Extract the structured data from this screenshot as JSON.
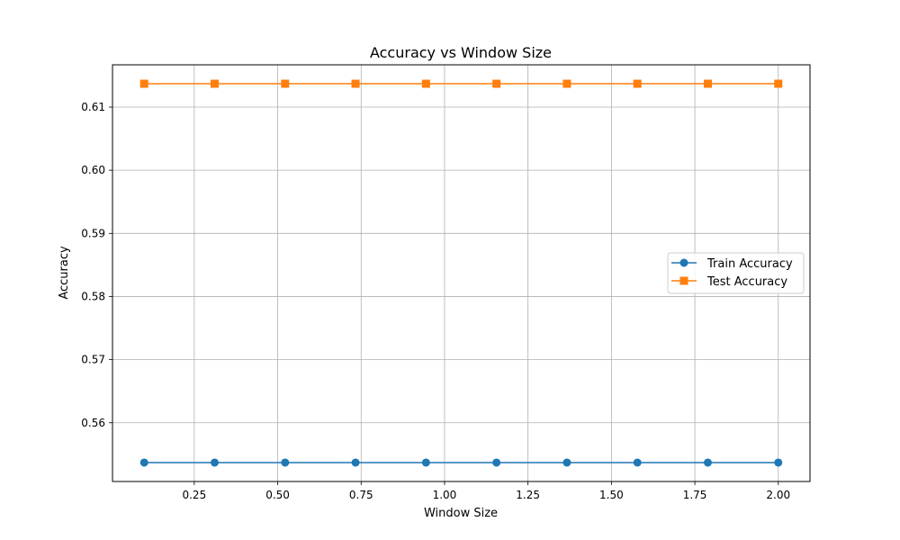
{
  "chart_data": {
    "type": "line",
    "title": "Accuracy vs Window Size",
    "xlabel": "Window Size",
    "ylabel": "Accuracy",
    "xlim": [
      0.005,
      2.095
    ],
    "ylim": [
      0.5507,
      0.6167
    ],
    "xticks": [
      0.25,
      0.5,
      0.75,
      1.0,
      1.25,
      1.5,
      1.75,
      2.0
    ],
    "xtick_labels": [
      "0.25",
      "0.50",
      "0.75",
      "1.00",
      "1.25",
      "1.50",
      "1.75",
      "2.00"
    ],
    "yticks": [
      0.56,
      0.57,
      0.58,
      0.59,
      0.6,
      0.61
    ],
    "ytick_labels": [
      "0.56",
      "0.57",
      "0.58",
      "0.59",
      "0.60",
      "0.61"
    ],
    "grid": true,
    "legend_position": "center-right",
    "x": [
      0.1,
      0.3111,
      0.5222,
      0.7333,
      0.9444,
      1.1556,
      1.3667,
      1.5778,
      1.7889,
      2.0
    ],
    "series": [
      {
        "name": "Train Accuracy",
        "color": "#1f77b4",
        "marker": "circle",
        "values": [
          0.5537,
          0.5537,
          0.5537,
          0.5537,
          0.5537,
          0.5537,
          0.5537,
          0.5537,
          0.5537,
          0.5537
        ]
      },
      {
        "name": "Test Accuracy",
        "color": "#ff7f0e",
        "marker": "square",
        "values": [
          0.6137,
          0.6137,
          0.6137,
          0.6137,
          0.6137,
          0.6137,
          0.6137,
          0.6137,
          0.6137,
          0.6137
        ]
      }
    ]
  }
}
